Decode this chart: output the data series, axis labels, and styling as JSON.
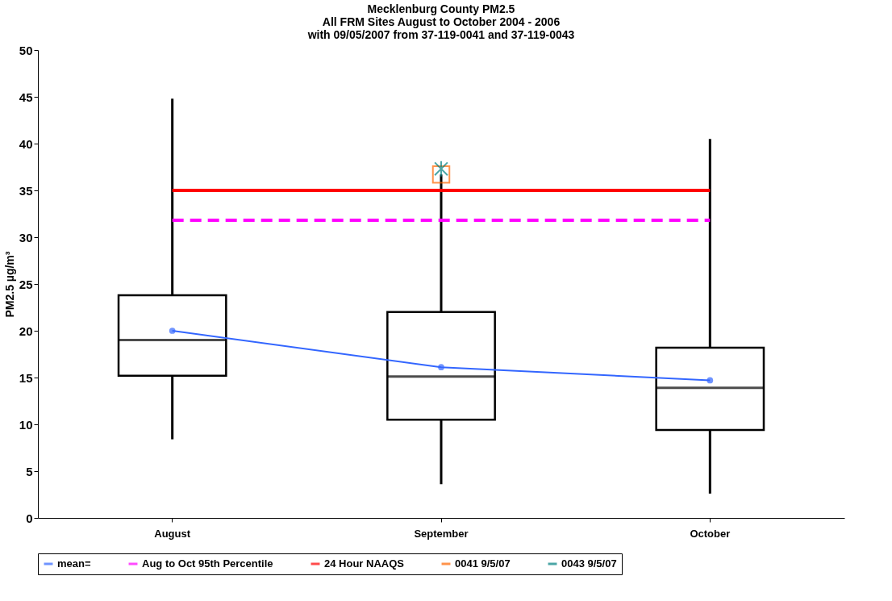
{
  "chart_data": {
    "type": "box",
    "title": "Mecklenburg County PM2.5\nAll FRM Sites August to October 2004 - 2006\nwith 09/05/2007 from 37-119-0041 and 37-119-0043",
    "ylabel": "PM2.5 µg/m³",
    "categories": [
      "August",
      "September",
      "October"
    ],
    "boxes": [
      {
        "low": 8.4,
        "q1": 15.2,
        "median": 19.0,
        "q3": 23.8,
        "high": 44.8
      },
      {
        "low": 3.6,
        "q1": 10.5,
        "median": 15.1,
        "q3": 22.0,
        "high": 36.7
      },
      {
        "low": 2.6,
        "q1": 9.4,
        "median": 13.9,
        "q3": 18.2,
        "high": 40.5
      }
    ],
    "color": "#000000",
    "series": [
      {
        "name": "mean=",
        "type": "line",
        "color": "#3366ff",
        "marker": "circle",
        "values": [
          20.0,
          16.1,
          14.7
        ]
      },
      {
        "name": "0041 9/5/07",
        "type": "scatter",
        "color": "#ff6600",
        "marker": "square",
        "x": [
          "September"
        ],
        "values": [
          36.7
        ]
      },
      {
        "name": "0043 9/5/07",
        "type": "scatter",
        "color": "#008080",
        "marker": "cross",
        "x": [
          "September"
        ],
        "values": [
          37.3
        ]
      }
    ],
    "ref_lines": [
      {
        "axis": "y",
        "value": 31.8,
        "label": "Aug to Oct 95th Percentile",
        "color": "#ff00ff",
        "line_style": "dashed"
      },
      {
        "axis": "y",
        "value": 35,
        "label": "24 Hour NAAQS",
        "color": "#ff0000",
        "line_style": "solid"
      }
    ],
    "ylim": [
      0,
      50
    ],
    "yticks": [
      0,
      5,
      10,
      15,
      20,
      25,
      30,
      35,
      40,
      45,
      50
    ],
    "grid": false,
    "legend": "bottom"
  }
}
